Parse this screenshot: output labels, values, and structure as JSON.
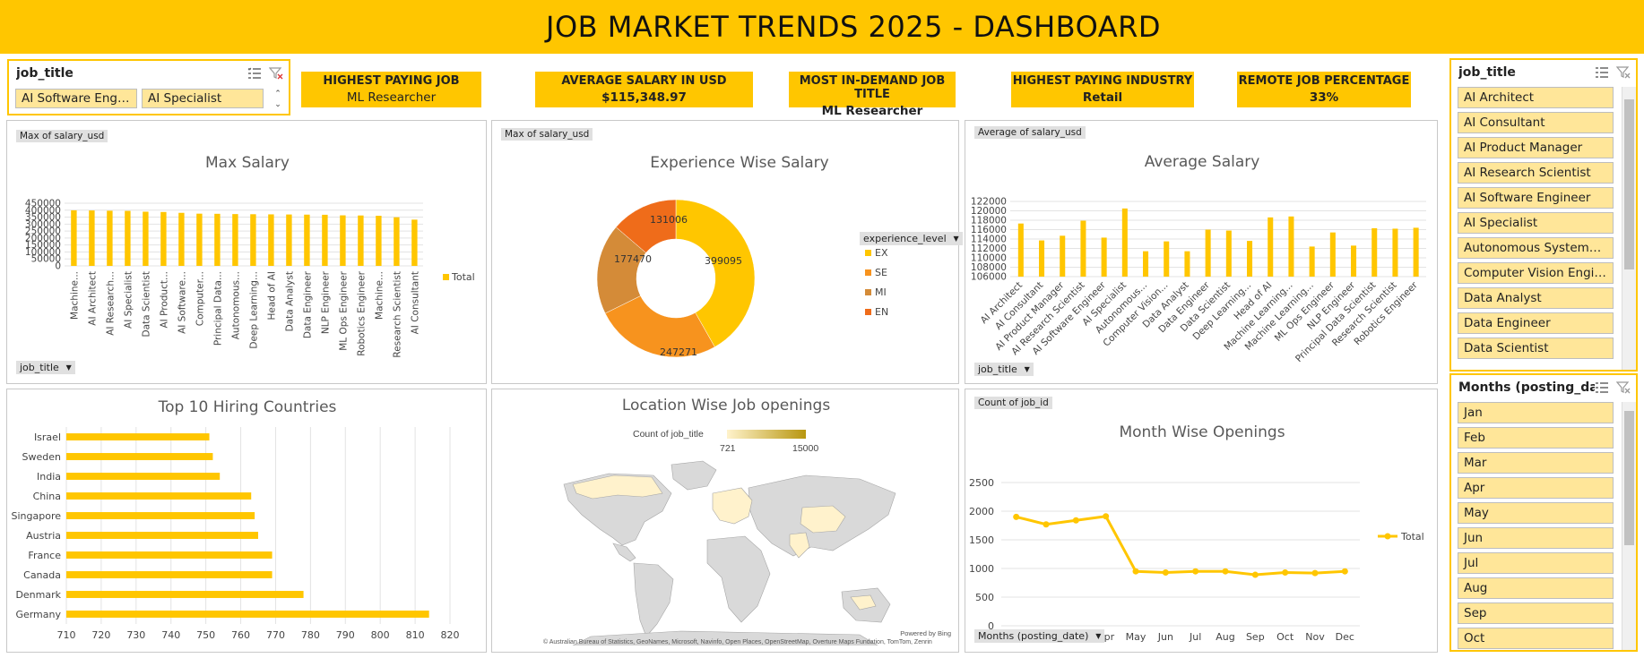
{
  "title": "JOB MARKET TRENDS 2025 - DASHBOARD",
  "slicer_top": {
    "title": "job_title",
    "items": [
      "AI Software Engi...",
      "AI Specialist"
    ]
  },
  "kpis": [
    {
      "label": "HIGHEST PAYING JOB",
      "value": "ML Researcher"
    },
    {
      "label": "AVERAGE SALARY IN USD",
      "value": "$115,348.97"
    },
    {
      "label": "MOST IN-DEMAND JOB TITLE",
      "value": "ML Researcher"
    },
    {
      "label": "HIGHEST PAYING INDUSTRY",
      "value": "Retail"
    },
    {
      "label": "REMOTE JOB PERCENTAGE",
      "value": "33%"
    }
  ],
  "slicer_right_jobs": {
    "title": "job_title",
    "items": [
      "AI Architect",
      "AI Consultant",
      "AI Product Manager",
      "AI Research Scientist",
      "AI Software Engineer",
      "AI Specialist",
      "Autonomous Systems ...",
      "Computer Vision Engin...",
      "Data Analyst",
      "Data Engineer",
      "Data Scientist"
    ]
  },
  "slicer_right_months": {
    "title": "Months (posting_da...",
    "items": [
      "Jan",
      "Feb",
      "Mar",
      "Apr",
      "May",
      "Jun",
      "Jul",
      "Aug",
      "Sep",
      "Oct"
    ]
  },
  "max_salary": {
    "field_tag": "Max of salary_usd",
    "title": "Max Salary",
    "legend": "Total",
    "axis_button": "job_title",
    "y_ticks": [
      "450000",
      "400000",
      "350000",
      "300000",
      "250000",
      "200000",
      "150000",
      "100000",
      "50000",
      "0"
    ]
  },
  "experience": {
    "field_tag": "Max of salary_usd",
    "title": "Experience Wise Salary",
    "legend_button": "experience_level",
    "labels": [
      "399095",
      "247271",
      "177470",
      "131006"
    ]
  },
  "avg_salary": {
    "field_tag": "Average of salary_usd",
    "title": "Average Salary",
    "axis_button": "job_title",
    "y_ticks": [
      "122000",
      "120000",
      "118000",
      "116000",
      "114000",
      "112000",
      "110000",
      "108000",
      "106000"
    ]
  },
  "countries": {
    "title": "Top 10 Hiring Countries",
    "x_ticks": [
      "710",
      "720",
      "730",
      "740",
      "750",
      "760",
      "770",
      "780",
      "790",
      "800",
      "810",
      "820"
    ]
  },
  "map": {
    "title": "Location Wise Job openings",
    "legend_title": "Count of job_title",
    "legend_min": "721",
    "legend_max": "15000",
    "powered": "Powered by Bing",
    "attribution": "© Australian Bureau of Statistics, GeoNames, Microsoft, Navinfo, Open Places, OpenStreetMap, Overture Maps Fundation, TomTom, Zenrin"
  },
  "months_chart": {
    "field_tag": "Count of job_id",
    "title": "Month Wise Openings",
    "legend": "Total",
    "axis_button": "Months (posting_date)",
    "y_ticks": [
      "2500",
      "2000",
      "1500",
      "1000",
      "500",
      "0"
    ]
  },
  "chart_data": [
    {
      "type": "bar",
      "title": "Max Salary",
      "categories": [
        "Machine...",
        "AI Architect",
        "AI Research...",
        "AI Specialist",
        "Data Scientist",
        "AI Product...",
        "AI Software...",
        "Computer...",
        "Principal Data...",
        "Autonomous...",
        "Deep Learning...",
        "Head of AI",
        "Data Analyst",
        "Data Engineer",
        "NLP Engineer",
        "ML Ops Engineer",
        "Robotics Engineer",
        "Machine...",
        "Research Scientist",
        "AI Consultant"
      ],
      "series": [
        {
          "name": "Total",
          "values": [
            399095,
            398000,
            396000,
            395000,
            389000,
            387000,
            381000,
            375000,
            374000,
            372000,
            371000,
            370000,
            369000,
            368000,
            367000,
            363000,
            362000,
            360000,
            349000,
            332000
          ]
        }
      ],
      "ylim": [
        0,
        450000
      ]
    },
    {
      "type": "pie",
      "title": "Experience Wise Salary",
      "categories": [
        "EX",
        "SE",
        "MI",
        "EN"
      ],
      "values": [
        399095,
        247271,
        177470,
        131006
      ],
      "colors": [
        "#ffc600",
        "#f7931e",
        "#d48b38",
        "#ef6c1a"
      ]
    },
    {
      "type": "bar",
      "title": "Average Salary",
      "categories": [
        "AI Architect",
        "AI Consultant",
        "AI Product Manager",
        "AI Research Scientist",
        "AI Software Engineer",
        "AI Specialist",
        "Autonomous...",
        "Computer Vision...",
        "Data Analyst",
        "Data Engineer",
        "Data Scientist",
        "Deep Learning...",
        "Head of AI",
        "Machine Learning...",
        "Machine Learning...",
        "ML Ops Engineer",
        "NLP Engineer",
        "Principal Data Scientist",
        "Research Scientist",
        "Robotics Engineer"
      ],
      "values": [
        117300,
        113700,
        114700,
        117900,
        114300,
        120500,
        111400,
        113500,
        111400,
        116000,
        115800,
        113600,
        118600,
        118800,
        112400,
        115400,
        112600,
        116300,
        116200,
        116400
      ],
      "ylim": [
        106000,
        122000
      ]
    },
    {
      "type": "bar",
      "title": "Top 10 Hiring Countries",
      "categories": [
        "Israel",
        "Sweden",
        "India",
        "China",
        "Singapore",
        "Austria",
        "France",
        "Canada",
        "Denmark",
        "Germany"
      ],
      "values": [
        751,
        752,
        754,
        763,
        764,
        765,
        769,
        769,
        778,
        814
      ],
      "xlim": [
        710,
        820
      ]
    },
    {
      "type": "line",
      "title": "Month Wise Openings",
      "categories": [
        "Jan",
        "Feb",
        "Mar",
        "Apr",
        "May",
        "Jun",
        "Jul",
        "Aug",
        "Sep",
        "Oct",
        "Nov",
        "Dec"
      ],
      "series": [
        {
          "name": "Total",
          "values": [
            1900,
            1770,
            1840,
            1910,
            950,
            930,
            950,
            950,
            890,
            930,
            920,
            950
          ]
        }
      ],
      "ylim": [
        0,
        2500
      ]
    }
  ],
  "colors": {
    "accent": "#ffc600",
    "slicer_item": "#ffe699"
  }
}
